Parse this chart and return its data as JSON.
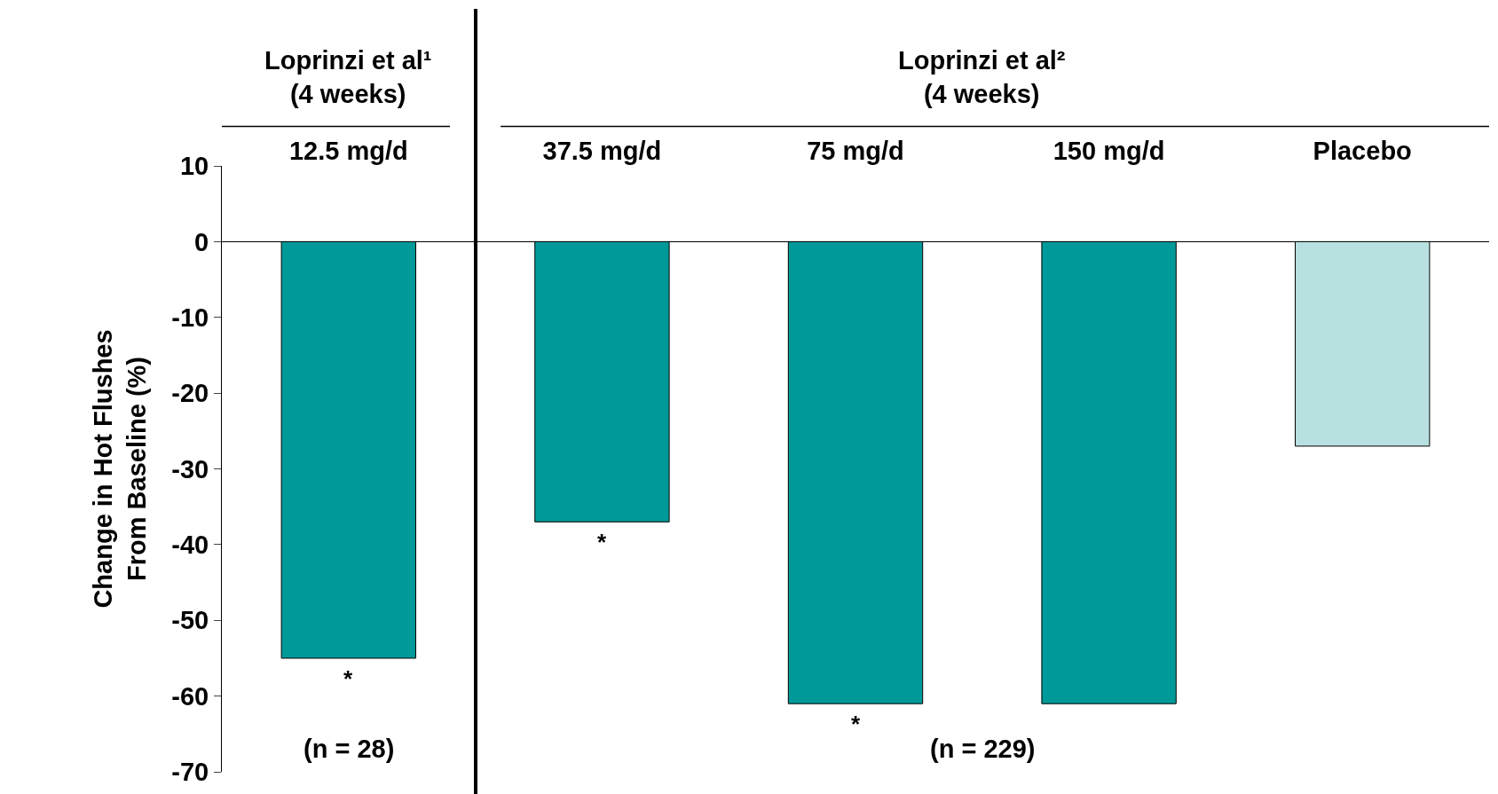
{
  "chart_data": {
    "type": "bar",
    "categories": [
      "12.5 mg/d",
      "37.5 mg/d",
      "75 mg/d",
      "150 mg/d",
      "Placebo"
    ],
    "values": [
      -55,
      -37,
      -61,
      -61,
      -27
    ],
    "colors": [
      "#009999",
      "#009999",
      "#009999",
      "#009999",
      "#b9e0e0"
    ],
    "ylabel": "Change in Hot Flushes\nFrom Baseline (%)",
    "ylim": [
      -70,
      10
    ],
    "yticks": [
      -70,
      -60,
      -50,
      -40,
      -30,
      -20,
      -10,
      0,
      10
    ],
    "annotations": [
      "Loprinzi et al¹\n(4 weeks)",
      "Loprinzi et al²\n(4 weeks)",
      "(n = 28)",
      "(n = 229)",
      {
        "text": "*",
        "x": "12.5 mg/d",
        "y": -55
      },
      {
        "text": "*",
        "x": "37.5 mg/d",
        "y": -37
      },
      {
        "text": "*",
        "x": "75 mg/d",
        "y": -61
      }
    ]
  }
}
